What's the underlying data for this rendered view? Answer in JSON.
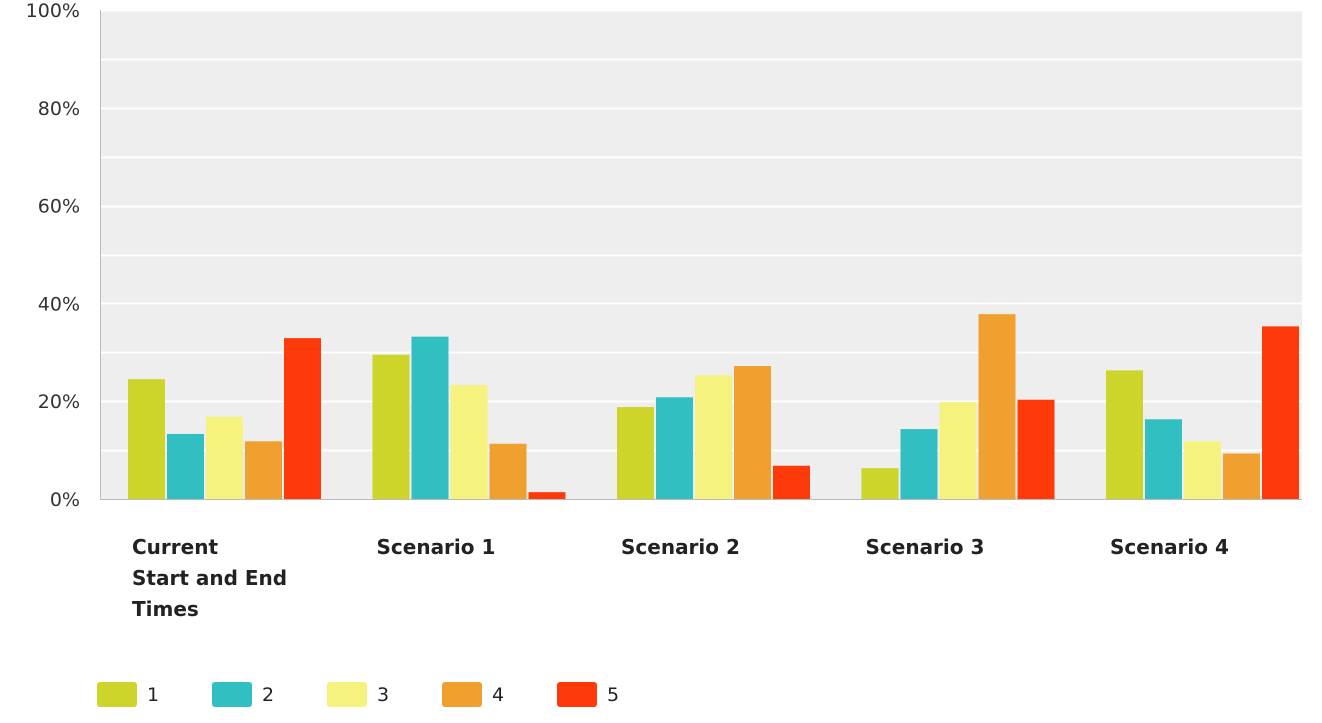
{
  "chart_data": {
    "type": "bar",
    "title": "",
    "xlabel": "",
    "ylabel": "",
    "ylim": [
      0,
      100
    ],
    "y_ticks": [
      "0%",
      "20%",
      "40%",
      "60%",
      "80%",
      "100%"
    ],
    "grid": true,
    "legend_position": "bottom-left",
    "categories": [
      [
        "Current",
        "Start and End",
        "Times"
      ],
      [
        "Scenario 1"
      ],
      [
        "Scenario 2"
      ],
      [
        "Scenario 3"
      ],
      [
        "Scenario 4"
      ]
    ],
    "series": [
      {
        "name": "1",
        "color": "#cdd42a",
        "values": [
          24.5,
          29.5,
          18.8,
          6.3,
          26.3
        ]
      },
      {
        "name": "2",
        "color": "#31bfc2",
        "values": [
          13.3,
          33.2,
          20.8,
          14.3,
          16.3
        ]
      },
      {
        "name": "3",
        "color": "#f5f37d",
        "values": [
          16.8,
          23.3,
          25.3,
          19.8,
          11.8
        ]
      },
      {
        "name": "4",
        "color": "#f0a02e",
        "values": [
          11.8,
          11.3,
          27.2,
          37.8,
          9.3
        ]
      },
      {
        "name": "5",
        "color": "#ff3a0a",
        "values": [
          32.9,
          1.4,
          6.8,
          20.3,
          35.3
        ]
      }
    ]
  },
  "style": {
    "plot_background": "#eeeeee",
    "gridline_color": "#ffffff",
    "axis_color": "#bbbbbb"
  }
}
